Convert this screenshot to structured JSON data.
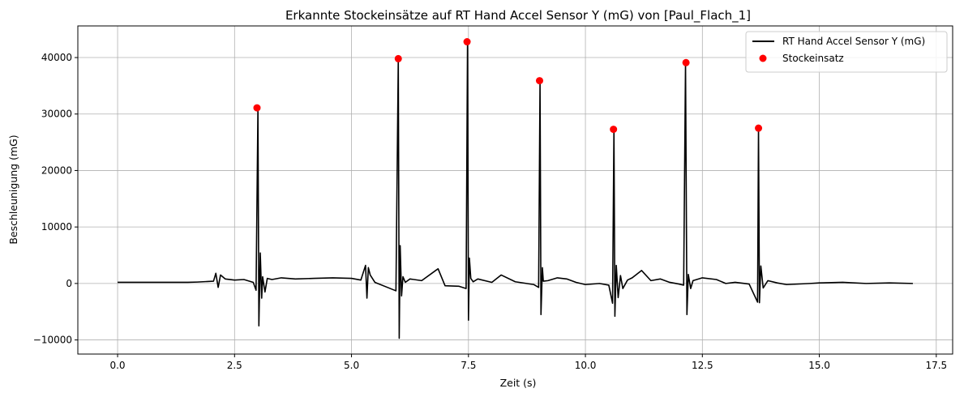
{
  "chart_data": {
    "type": "line",
    "title": "Erkannte Stockeinsätze auf RT Hand Accel Sensor Y (mG) von [Paul_Flach_1]",
    "xlabel": "Zeit (s)",
    "ylabel": "Beschleunigung (mG)",
    "xlim": [
      -0.85,
      17.85
    ],
    "ylim": [
      -12500,
      45600
    ],
    "x_ticks": [
      0.0,
      2.5,
      5.0,
      7.5,
      10.0,
      12.5,
      15.0,
      17.5
    ],
    "x_tick_labels": [
      "0.0",
      "2.5",
      "5.0",
      "7.5",
      "10.0",
      "12.5",
      "15.0",
      "17.5"
    ],
    "y_ticks": [
      -10000,
      0,
      10000,
      20000,
      30000,
      40000
    ],
    "y_tick_labels": [
      "−10000",
      "0",
      "10000",
      "20000",
      "30000",
      "40000"
    ],
    "grid": true,
    "legend_position": "upper right",
    "series": [
      {
        "name": "RT Hand Accel Sensor Y (mG)",
        "style": "line",
        "color": "#000000",
        "x": [
          0.0,
          1.5,
          1.7,
          2.05,
          2.1,
          2.15,
          2.2,
          2.3,
          2.5,
          2.7,
          2.9,
          2.96,
          3.0,
          3.02,
          3.05,
          3.08,
          3.1,
          3.15,
          3.2,
          3.3,
          3.5,
          3.8,
          4.2,
          4.6,
          5.0,
          5.2,
          5.3,
          5.33,
          5.36,
          5.4,
          5.5,
          5.8,
          5.95,
          6.0,
          6.02,
          6.04,
          6.07,
          6.1,
          6.15,
          6.25,
          6.5,
          6.8,
          6.85,
          7.0,
          7.3,
          7.45,
          7.48,
          7.5,
          7.52,
          7.55,
          7.6,
          7.7,
          8.0,
          8.2,
          8.5,
          8.9,
          9.0,
          9.03,
          9.05,
          9.08,
          9.1,
          9.2,
          9.4,
          9.6,
          9.8,
          10.0,
          10.3,
          10.5,
          10.58,
          10.61,
          10.63,
          10.66,
          10.7,
          10.75,
          10.8,
          10.9,
          11.0,
          11.2,
          11.4,
          11.6,
          11.8,
          12.0,
          12.1,
          12.14,
          12.17,
          12.2,
          12.25,
          12.3,
          12.5,
          12.8,
          13.0,
          13.2,
          13.5,
          13.68,
          13.7,
          13.72,
          13.75,
          13.8,
          13.9,
          14.1,
          14.3,
          14.8,
          15.0,
          15.5,
          16.0,
          16.5,
          17.0
        ],
        "y": [
          200,
          200,
          250,
          400,
          1800,
          -700,
          1500,
          800,
          600,
          700,
          200,
          -1200,
          31000,
          -7500,
          5400,
          -2600,
          1200,
          -1500,
          900,
          700,
          1000,
          800,
          900,
          1000,
          900,
          600,
          3200,
          -2600,
          2800,
          1500,
          200,
          -800,
          -1300,
          39800,
          -9700,
          6700,
          -2200,
          1200,
          200,
          800,
          500,
          2300,
          2600,
          -400,
          -500,
          -900,
          42800,
          -6500,
          4500,
          900,
          300,
          800,
          200,
          1500,
          300,
          -200,
          -700,
          35900,
          -5500,
          2800,
          400,
          500,
          1000,
          800,
          200,
          -200,
          0,
          -300,
          -3500,
          27300,
          -5800,
          3200,
          -2500,
          1400,
          -900,
          600,
          1000,
          2300,
          500,
          800,
          200,
          -100,
          -300,
          39100,
          -5500,
          1600,
          -900,
          500,
          1000,
          700,
          0,
          200,
          -100,
          -3300,
          27500,
          -3400,
          3100,
          -800,
          500,
          100,
          -200,
          0,
          100,
          200,
          0,
          100,
          0
        ]
      },
      {
        "name": "Stockeinsatz",
        "style": "marker",
        "color": "#ff0000",
        "x": [
          2.98,
          6.0,
          7.47,
          9.02,
          10.6,
          12.15,
          13.7
        ],
        "y": [
          31100,
          39800,
          42800,
          35900,
          27300,
          39100,
          27500
        ]
      }
    ]
  }
}
